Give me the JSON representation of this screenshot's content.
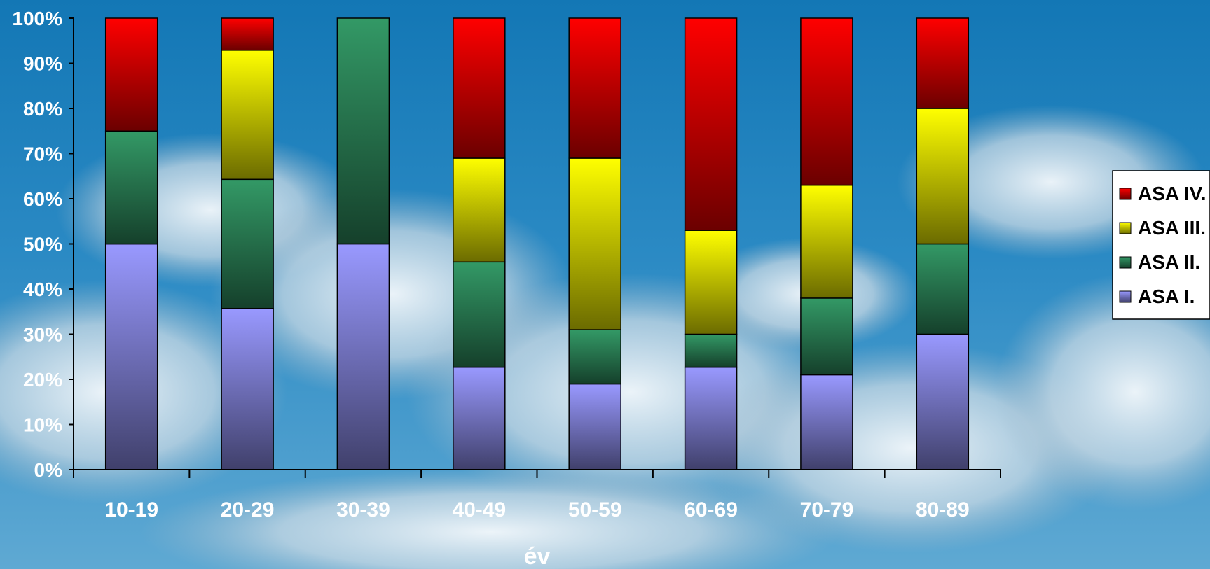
{
  "chart_data": {
    "type": "bar",
    "stacked": true,
    "stack_mode": "percent",
    "categories": [
      "10-19",
      "20-29",
      "30-39",
      "40-49",
      "50-59",
      "60-69",
      "70-79",
      "80-89"
    ],
    "xlabel": "év",
    "ylabel": "",
    "ylim": [
      0,
      100
    ],
    "y_ticks": [
      "0%",
      "10%",
      "20%",
      "30%",
      "40%",
      "50%",
      "60%",
      "70%",
      "80%",
      "90%",
      "100%"
    ],
    "grid": false,
    "legend_position": "right",
    "series": [
      {
        "name": "ASA I.",
        "color": "#9999ff",
        "values": [
          50,
          35.7,
          50,
          22.7,
          19,
          22.7,
          21,
          30
        ]
      },
      {
        "name": "ASA II.",
        "color": "#339966",
        "values": [
          25,
          28.6,
          50,
          23.3,
          12,
          7.3,
          17,
          20
        ]
      },
      {
        "name": "ASA III.",
        "color": "#ffff00",
        "values": [
          0,
          28.6,
          0,
          23,
          38,
          23,
          25,
          30
        ]
      },
      {
        "name": "ASA IV.",
        "color": "#ff0000",
        "values": [
          25,
          7.1,
          0,
          31,
          31,
          47,
          37,
          20
        ]
      }
    ]
  }
}
